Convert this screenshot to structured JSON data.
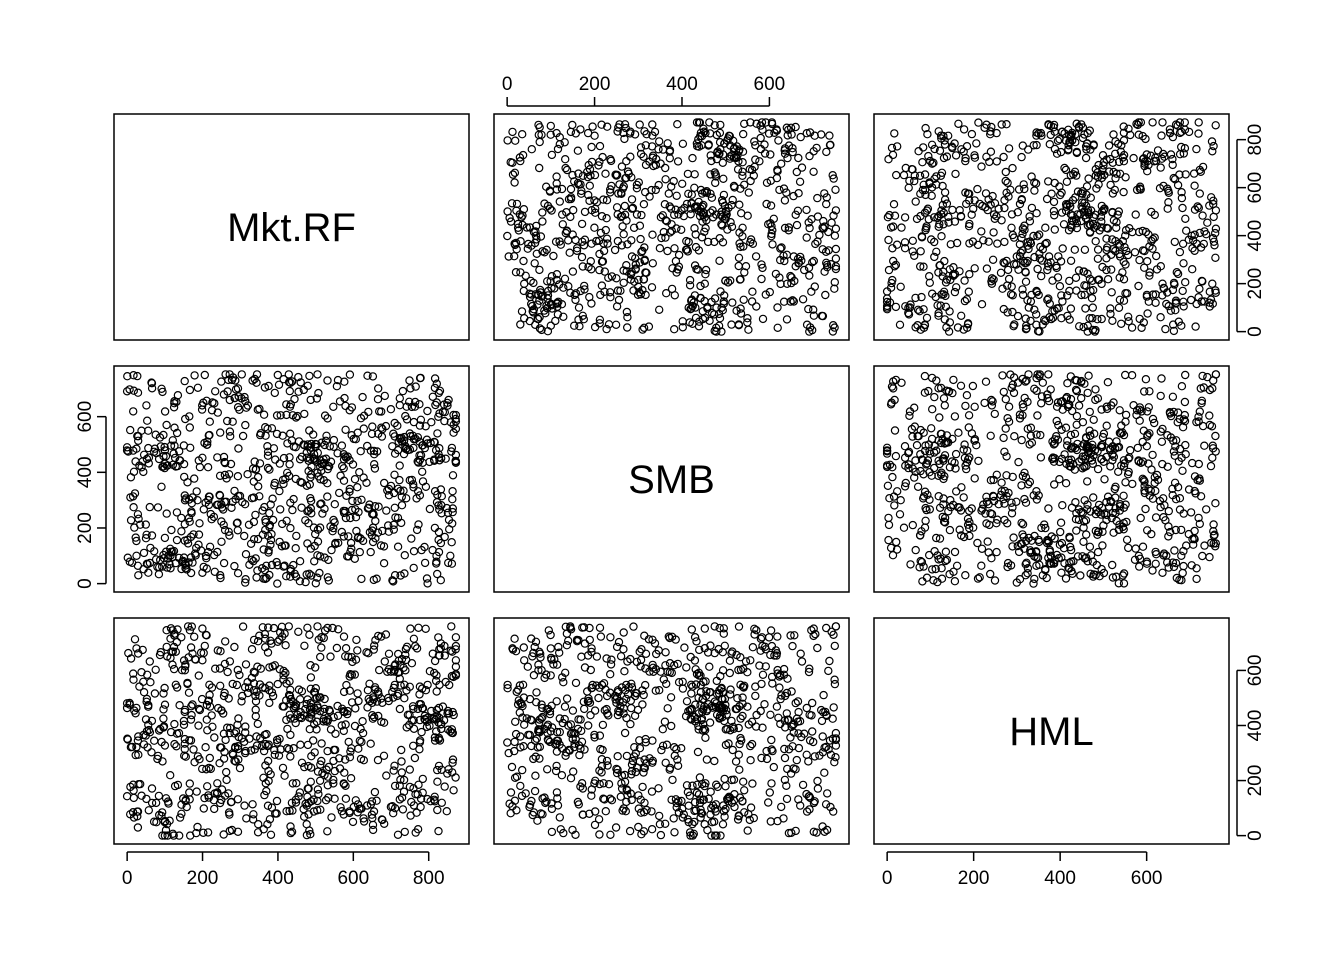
{
  "chart_data": {
    "type": "scatter",
    "title": "",
    "variables": [
      "Mkt.RF",
      "SMB",
      "HML"
    ],
    "ranges": {
      "Mkt.RF": [
        0,
        872
      ],
      "SMB": [
        0,
        752
      ],
      "HML": [
        0,
        760
      ]
    },
    "ticks": {
      "Mkt.RF": [
        0,
        200,
        400,
        600,
        800
      ],
      "SMB": [
        0,
        200,
        400,
        600
      ],
      "HML": [
        0,
        200,
        400,
        600
      ]
    },
    "tick_labels": {
      "Mkt.RF": [
        "0",
        "200",
        "400",
        "600",
        "800"
      ],
      "SMB": [
        "0",
        "200",
        "400",
        "600"
      ],
      "HML": [
        "0",
        "200",
        "400",
        "600"
      ]
    },
    "axes": {
      "top": "SMB",
      "right_top": "Mkt.RF",
      "left_middle": "SMB",
      "right_bottom": "HML",
      "bottom_left": "Mkt.RF",
      "bottom_right": "HML"
    },
    "n_points": 870,
    "grid": false,
    "legend": "none",
    "point_color": "#000000"
  }
}
